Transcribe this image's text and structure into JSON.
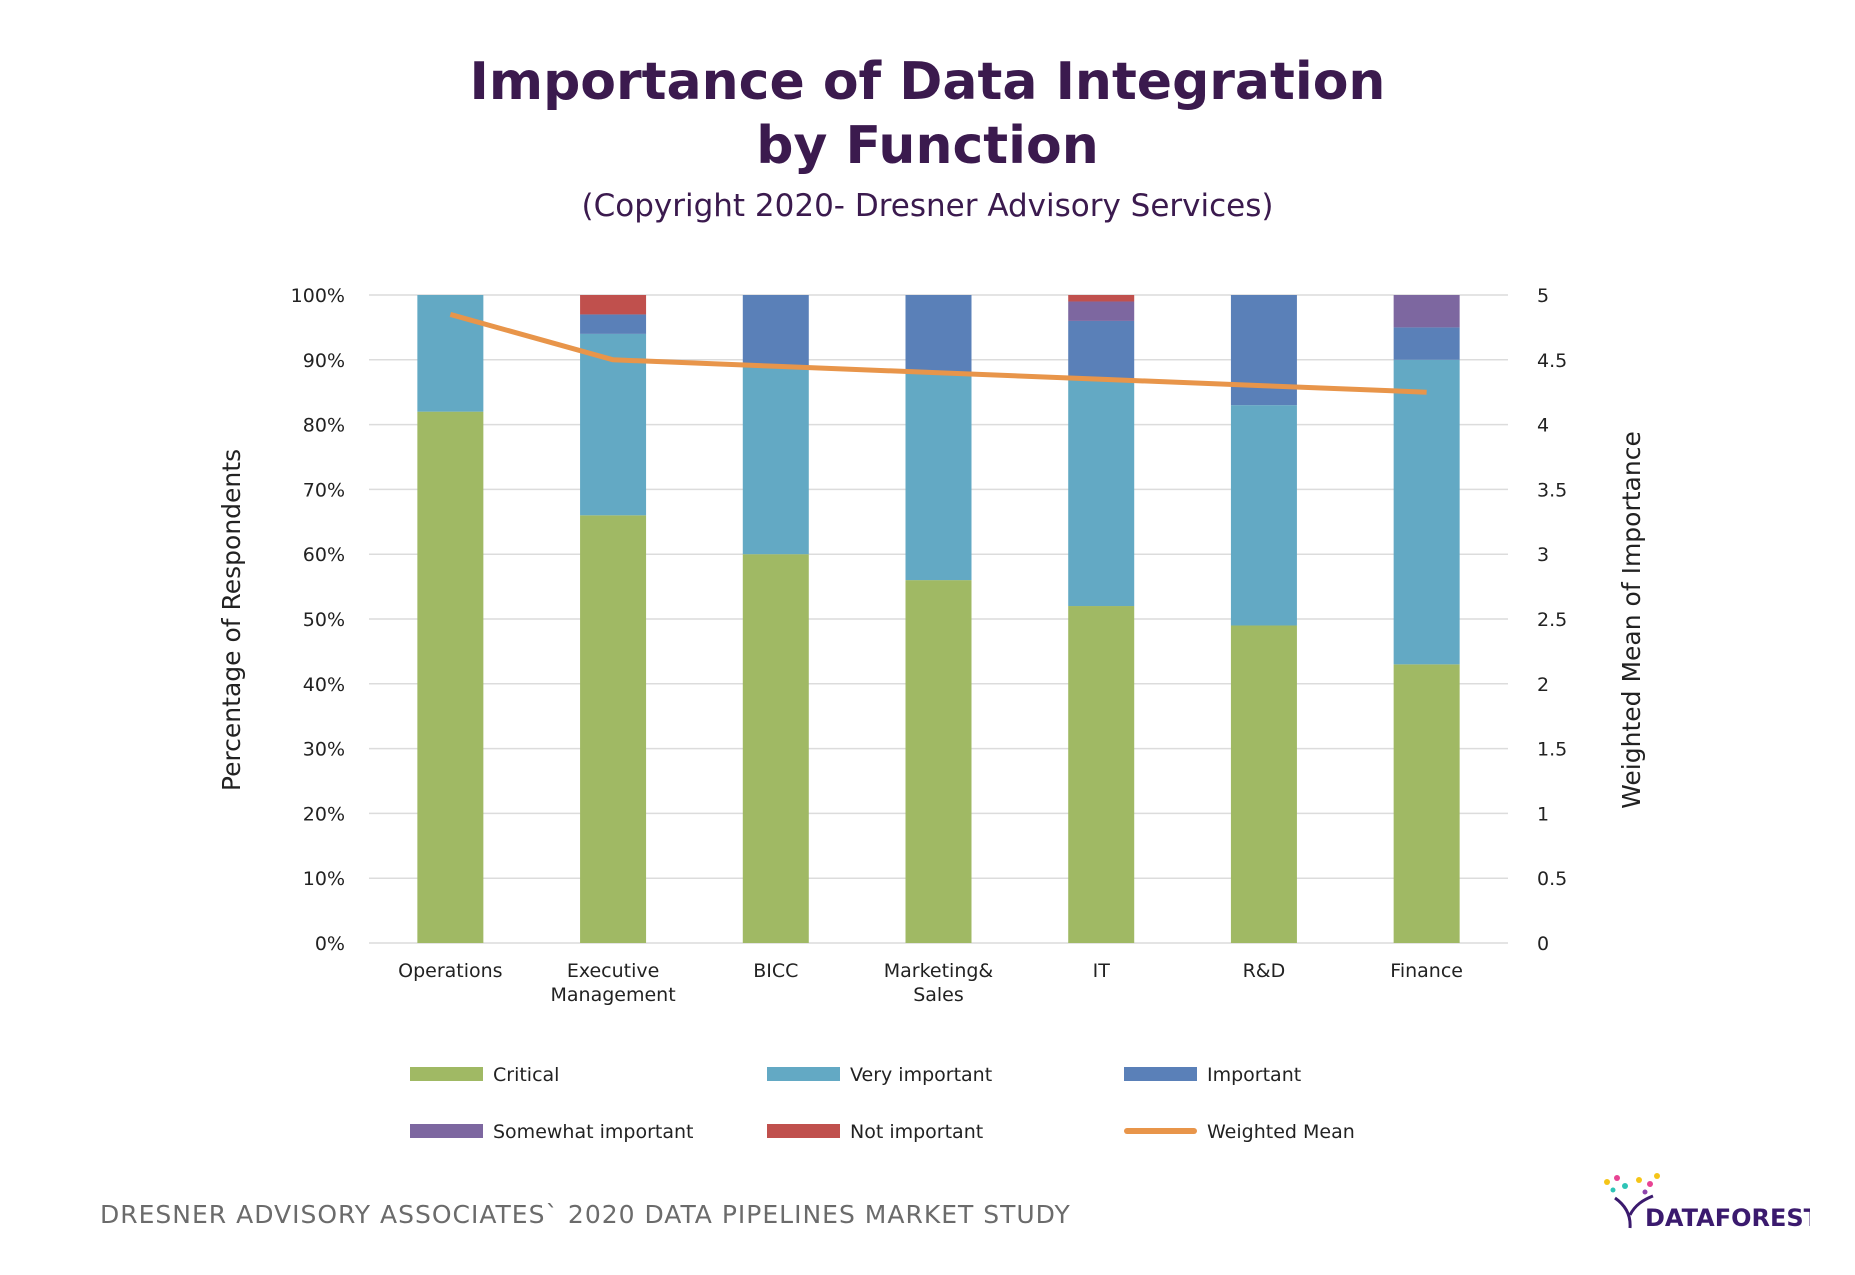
{
  "title_line1": "Importance of Data Integration",
  "title_line2": "by Function",
  "subtitle": "(Copyright 2020- Dresner Advisory Services)",
  "footer": "DRESNER ADVISORY ASSOCIATES` 2020 DATA PIPELINES MARKET STUDY",
  "logo_text": "DATAFOREST",
  "chart_data": {
    "type": "bar",
    "stacked": true,
    "categories": [
      [
        "Operations"
      ],
      [
        "Executive",
        "Management"
      ],
      [
        "BICC"
      ],
      [
        "Marketing&",
        "Sales"
      ],
      [
        "IT"
      ],
      [
        "R&D"
      ],
      [
        "Finance"
      ]
    ],
    "series": [
      {
        "name": "Critical",
        "color": "#a0b964",
        "values": [
          82,
          66,
          60,
          56,
          52,
          49,
          43
        ]
      },
      {
        "name": "Very important",
        "color": "#63a9c4",
        "values": [
          18,
          28,
          29,
          32,
          35,
          34,
          47
        ]
      },
      {
        "name": "Important",
        "color": "#5a80b8",
        "values": [
          0,
          3,
          11,
          12,
          9,
          17,
          5
        ]
      },
      {
        "name": "Somewhat important",
        "color": "#7d67a0",
        "values": [
          0,
          0,
          0,
          0,
          3,
          0,
          5
        ]
      },
      {
        "name": "Not important",
        "color": "#c0504d",
        "values": [
          0,
          3,
          0,
          0,
          1,
          0,
          0
        ]
      }
    ],
    "line_series": {
      "name": "Weighted Mean",
      "color": "#e8954a",
      "values": [
        4.85,
        4.5,
        4.45,
        4.4,
        4.35,
        4.3,
        4.25
      ]
    },
    "ylabel": "Percentage of Respondents",
    "y2label": "Weighted Mean of Importance",
    "ylim": [
      0,
      100
    ],
    "y2lim": [
      0,
      5
    ],
    "yticks": [
      "0%",
      "10%",
      "20%",
      "30%",
      "40%",
      "50%",
      "60%",
      "70%",
      "80%",
      "90%",
      "100%"
    ],
    "y2ticks": [
      "0",
      "0.5",
      "1",
      "1.5",
      "2",
      "2.5",
      "3",
      "3.5",
      "4",
      "4.5",
      "5"
    ],
    "grid": true,
    "legend_position": "bottom"
  }
}
